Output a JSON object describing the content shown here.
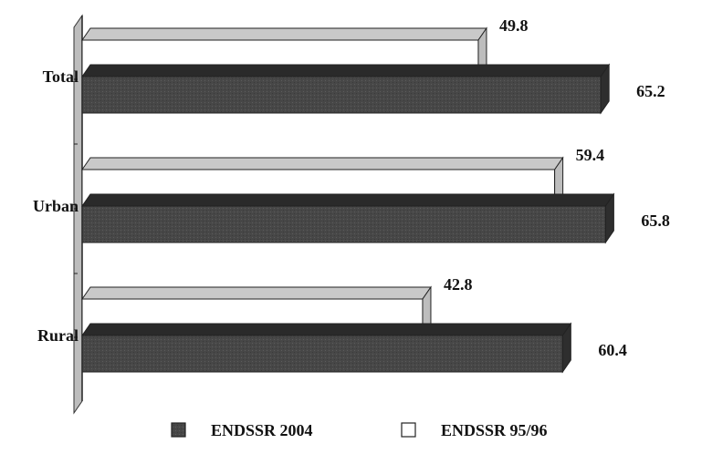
{
  "chart_data": {
    "type": "bar",
    "orientation": "horizontal",
    "three_d": true,
    "categories": [
      "Total",
      "Urban",
      "Rural"
    ],
    "series": [
      {
        "name": "ENDSSR 95/96",
        "values": [
          49.8,
          59.4,
          42.8
        ],
        "color": "#ffffff"
      },
      {
        "name": "ENDSSR 2004",
        "values": [
          65.2,
          65.8,
          60.4
        ],
        "color": "#4a4a4a"
      }
    ],
    "value_labels": {
      "ENDSSR 95/96": [
        "49.8",
        "59.4",
        "42.8"
      ],
      "ENDSSR 2004": [
        "65.2",
        "65.8",
        "60.4"
      ]
    },
    "xlim": [
      0,
      70
    ],
    "grid": false,
    "legend": {
      "placement": "bottom",
      "entries": [
        "ENDSSR 2004",
        "ENDSSR 95/96"
      ]
    }
  }
}
